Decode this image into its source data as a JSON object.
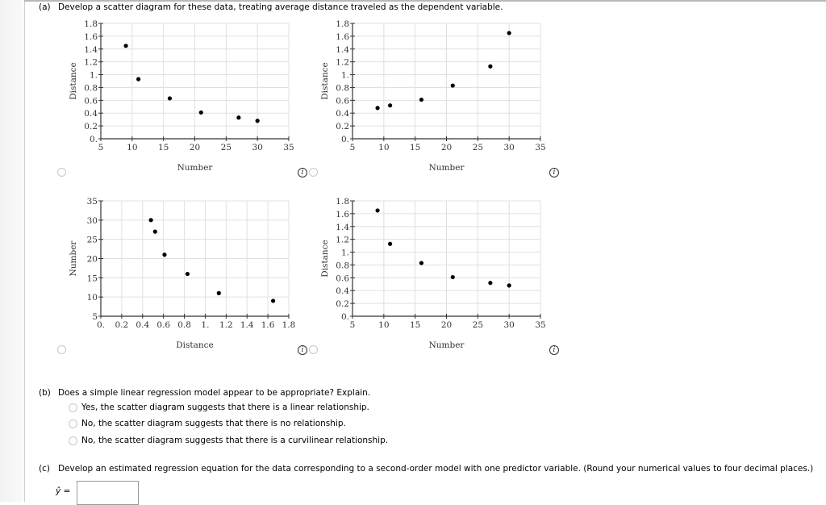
{
  "part_a": {
    "label": "(a)",
    "prompt": "Develop a scatter diagram for these data, treating average distance traveled as the dependent variable."
  },
  "part_b": {
    "label": "(b)",
    "prompt": "Does a simple linear regression model appear to be appropriate? Explain.",
    "options": [
      "Yes, the scatter diagram suggests that there is a linear relationship.",
      "No, the scatter diagram suggests that there is no relationship.",
      "No, the scatter diagram suggests that there is a curvilinear relationship."
    ]
  },
  "part_c": {
    "label": "(c)",
    "prompt": "Develop an estimated regression equation for the data corresponding to a second-order model with one predictor variable. (Round your numerical values to four decimal places.)",
    "answer_label": "ŷ =",
    "answer_value": ""
  },
  "info_icon_glyph": "i",
  "chart_data": [
    {
      "type": "scatter",
      "id": "chart-top-left",
      "xlabel": "Number",
      "ylabel": "Distance",
      "xlim": [
        5,
        35
      ],
      "ylim": [
        0,
        1.8
      ],
      "x_ticks": [
        "5",
        "10",
        "15",
        "20",
        "25",
        "30",
        "35"
      ],
      "y_ticks": [
        "0.",
        "0.2",
        "0.4",
        "0.6",
        "0.8",
        "1.",
        "1.2",
        "1.4",
        "1.6",
        "1.8"
      ],
      "grid": true,
      "x": [
        9,
        11,
        16,
        21,
        27,
        30
      ],
      "y": [
        1.45,
        0.93,
        0.63,
        0.41,
        0.33,
        0.28
      ]
    },
    {
      "type": "scatter",
      "id": "chart-top-right",
      "xlabel": "Number",
      "ylabel": "Distance",
      "xlim": [
        5,
        35
      ],
      "ylim": [
        0,
        1.8
      ],
      "x_ticks": [
        "5",
        "10",
        "15",
        "20",
        "25",
        "30",
        "35"
      ],
      "y_ticks": [
        "0.",
        "0.2",
        "0.4",
        "0.6",
        "0.8",
        "1.",
        "1.2",
        "1.4",
        "1.6",
        "1.8"
      ],
      "grid": true,
      "x": [
        9,
        11,
        16,
        21,
        27,
        30
      ],
      "y": [
        0.48,
        0.52,
        0.61,
        0.83,
        1.13,
        1.65
      ]
    },
    {
      "type": "scatter",
      "id": "chart-bottom-left",
      "xlabel": "Distance",
      "ylabel": "Number",
      "xlim": [
        0,
        1.8
      ],
      "ylim": [
        5,
        35
      ],
      "x_ticks": [
        "0.",
        "0.2",
        "0.4",
        "0.6",
        "0.8",
        "1.",
        "1.2",
        "1.4",
        "1.6",
        "1.8"
      ],
      "y_ticks": [
        "5",
        "10",
        "15",
        "20",
        "25",
        "30",
        "35"
      ],
      "grid": true,
      "x": [
        0.48,
        0.52,
        0.61,
        0.83,
        1.13,
        1.65
      ],
      "y": [
        30,
        27,
        21,
        16,
        11,
        9
      ]
    },
    {
      "type": "scatter",
      "id": "chart-bottom-right",
      "xlabel": "Number",
      "ylabel": "Distance",
      "xlim": [
        5,
        35
      ],
      "ylim": [
        0,
        1.8
      ],
      "x_ticks": [
        "5",
        "10",
        "15",
        "20",
        "25",
        "30",
        "35"
      ],
      "y_ticks": [
        "0.",
        "0.2",
        "0.4",
        "0.6",
        "0.8",
        "1.",
        "1.2",
        "1.4",
        "1.6",
        "1.8"
      ],
      "grid": true,
      "x": [
        9,
        11,
        16,
        21,
        27,
        30
      ],
      "y": [
        1.65,
        1.13,
        0.83,
        0.61,
        0.52,
        0.48
      ]
    }
  ]
}
